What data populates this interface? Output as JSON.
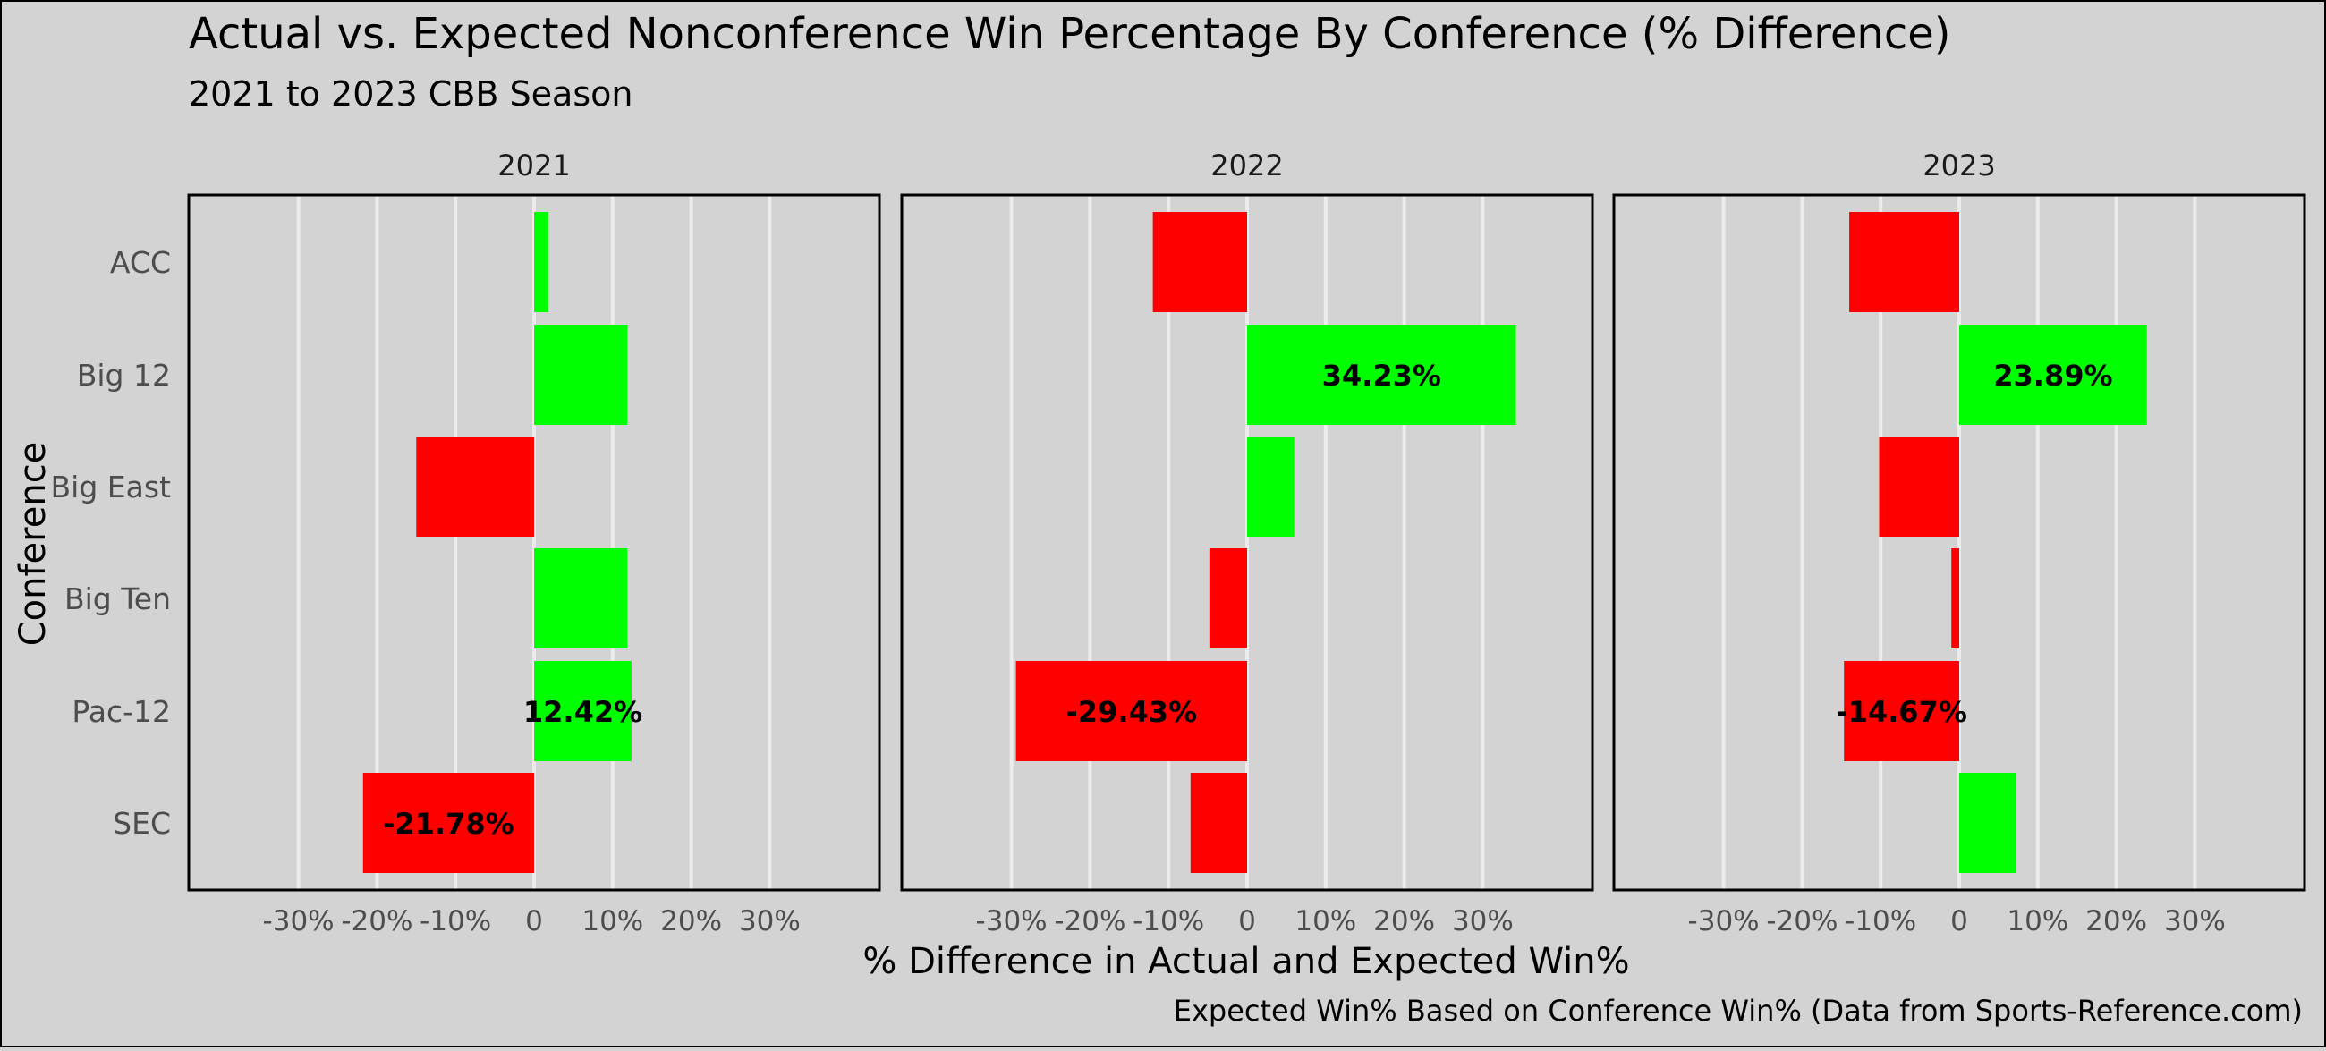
{
  "chart_data": {
    "type": "bar",
    "orientation": "horizontal",
    "title": "Actual vs. Expected Nonconference Win Percentage By Conference (% Difference)",
    "subtitle": "2021 to 2023 CBB Season",
    "xlabel": "% Difference in Actual and Expected Win%",
    "ylabel": "Conference",
    "caption": "Expected Win% Based on Conference Win% (Data from Sports-Reference.com)",
    "categories": [
      "ACC",
      "Big 12",
      "Big East",
      "Big Ten",
      "Pac-12",
      "SEC"
    ],
    "xlim": [
      -44,
      44
    ],
    "xticks": [
      -30,
      -20,
      -10,
      0,
      10,
      20,
      30
    ],
    "xtick_labels": [
      "-30%",
      "-20%",
      "-10%",
      "0",
      "10%",
      "20%",
      "30%"
    ],
    "grid": true,
    "legend": "none",
    "colors": {
      "positive": "#00ff00",
      "negative": "#ff0000",
      "panel_bg": "#d3d3d3",
      "grid": "#ececec",
      "frame": "#000000"
    },
    "panels": [
      {
        "title": "2021",
        "values": [
          1.8,
          11.9,
          -15.0,
          11.9,
          12.42,
          -21.78
        ],
        "data_labels": {
          "4": "12.42%",
          "5": "-21.78%"
        }
      },
      {
        "title": "2022",
        "values": [
          -12.0,
          34.23,
          6.0,
          -4.8,
          -29.43,
          -7.2
        ],
        "data_labels": {
          "1": "34.23%",
          "4": "-29.43%"
        }
      },
      {
        "title": "2023",
        "values": [
          -14.0,
          23.89,
          -10.2,
          -1.0,
          -14.67,
          7.2
        ],
        "data_labels": {
          "1": "23.89%",
          "4": "-14.67%"
        }
      }
    ]
  }
}
